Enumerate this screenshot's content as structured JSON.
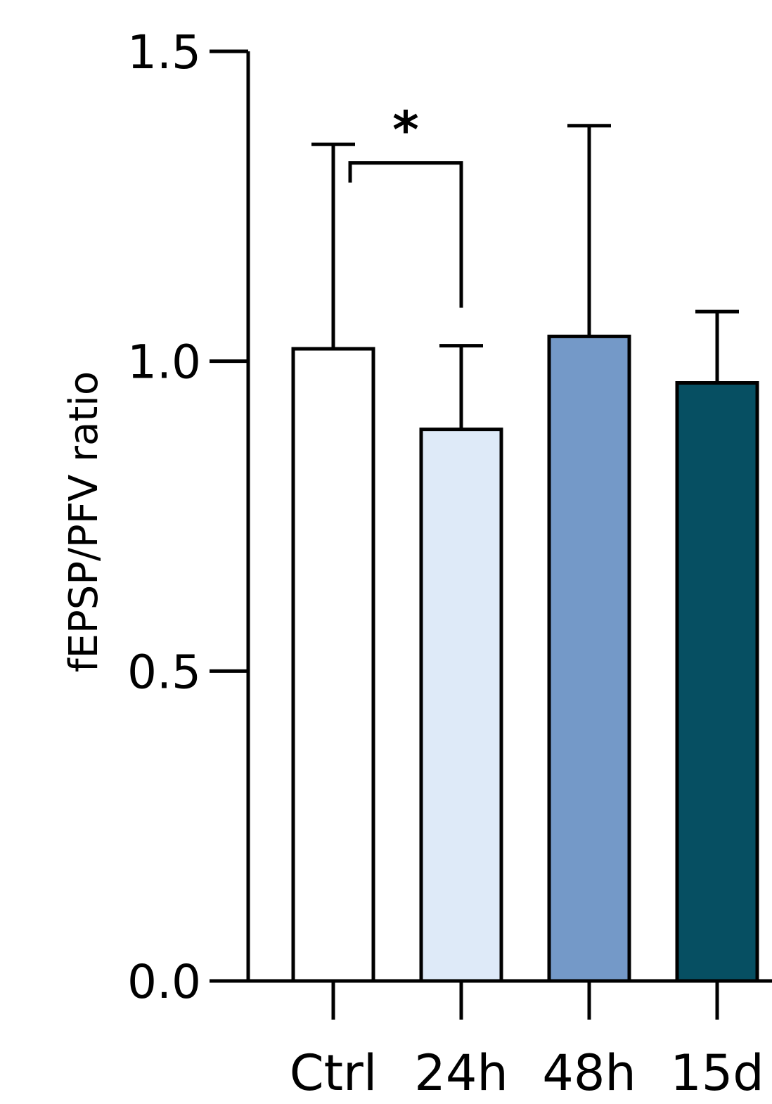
{
  "chart_data": {
    "type": "bar",
    "title": "",
    "xlabel": "",
    "ylabel": "fEPSP/PFV ratio",
    "ylim": [
      0,
      1.5
    ],
    "yticks": [
      0.0,
      0.5,
      1.0,
      1.5
    ],
    "ytick_labels": [
      "0.0",
      "0.5",
      "1.0",
      "1.5"
    ],
    "categories": [
      "Ctrl",
      "24h",
      "48h",
      "15d"
    ],
    "values": [
      1.02,
      0.89,
      1.04,
      0.965
    ],
    "errors": [
      0.33,
      0.135,
      0.34,
      0.115
    ],
    "colors": [
      "#ffffff",
      "#deeaf8",
      "#7499c8",
      "#064f62"
    ],
    "significance": [
      {
        "from": "Ctrl",
        "to": "24h",
        "label": "*",
        "y": 1.32
      }
    ]
  }
}
